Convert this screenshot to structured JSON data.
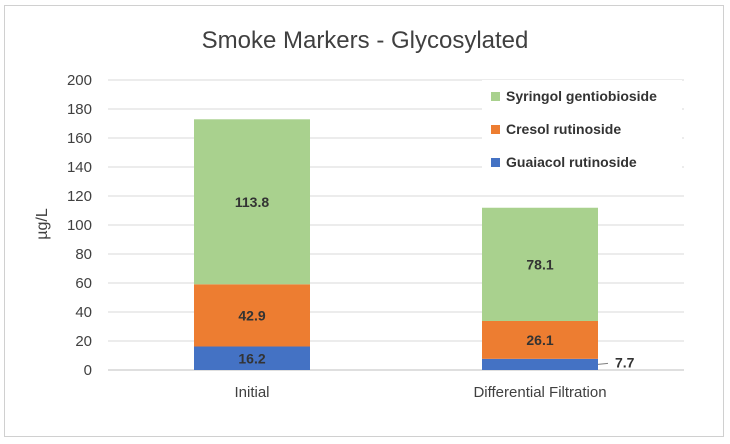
{
  "chart_data": {
    "type": "bar",
    "stacked": true,
    "title": "Smoke Markers - Glycosylated",
    "xlabel": "",
    "ylabel": "µg/L",
    "ylim": [
      0,
      200
    ],
    "yticks": [
      0,
      20,
      40,
      60,
      80,
      100,
      120,
      140,
      160,
      180,
      200
    ],
    "grid": true,
    "legend_position": "top-right",
    "categories": [
      "Initial",
      "Differential Filtration"
    ],
    "series": [
      {
        "name": "Guaiacol rutinoside",
        "values": [
          16.2,
          7.7
        ],
        "labels": [
          "16.2",
          "7.7"
        ],
        "color": "#4472c4"
      },
      {
        "name": "Cresol rutinoside",
        "values": [
          42.9,
          26.1
        ],
        "labels": [
          "42.9",
          "26.1"
        ],
        "color": "#ed7d31"
      },
      {
        "name": "Syringol gentiobioside",
        "values": [
          113.8,
          78.1
        ],
        "labels": [
          "113.8",
          "78.1"
        ],
        "color": "#a9d18e"
      }
    ],
    "legend_order": [
      "Syringol gentiobioside",
      "Cresol rutinoside",
      "Guaiacol rutinoside"
    ]
  }
}
